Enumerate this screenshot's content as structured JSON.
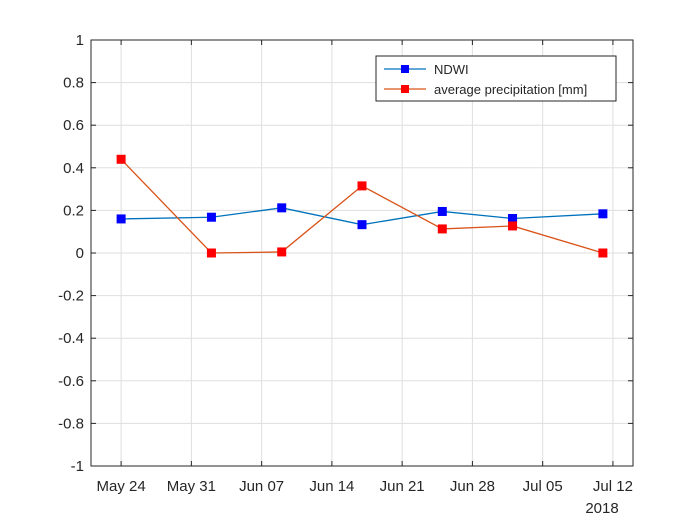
{
  "chart_data": {
    "type": "line",
    "x": [
      "2018-05-24",
      "2018-06-02",
      "2018-06-09",
      "2018-06-17",
      "2018-06-25",
      "2018-07-02",
      "2018-07-11"
    ],
    "series": [
      {
        "name": "NDWI",
        "color": "#0072BD",
        "marker_color": "#0000FF",
        "values": [
          0.16,
          0.168,
          0.212,
          0.133,
          0.195,
          0.162,
          0.184
        ]
      },
      {
        "name": "average precipitation [mm]",
        "color": "#D95319",
        "marker_color": "#FF0000",
        "values": [
          0.44,
          0.0,
          0.005,
          0.315,
          0.113,
          0.127,
          0.0
        ]
      }
    ],
    "xticks": [
      {
        "date": "2018-05-24",
        "label": "May 24"
      },
      {
        "date": "2018-05-31",
        "label": "May 31"
      },
      {
        "date": "2018-06-07",
        "label": "Jun 07"
      },
      {
        "date": "2018-06-14",
        "label": "Jun 14"
      },
      {
        "date": "2018-06-21",
        "label": "Jun 21"
      },
      {
        "date": "2018-06-28",
        "label": "Jun 28"
      },
      {
        "date": "2018-07-05",
        "label": "Jul 05"
      },
      {
        "date": "2018-07-12",
        "label": "Jul 12"
      }
    ],
    "xlim": [
      "2018-05-21",
      "2018-07-14"
    ],
    "x_secondary_label": "2018",
    "yticks": [
      -1,
      -0.8,
      -0.6,
      -0.4,
      -0.2,
      0,
      0.2,
      0.4,
      0.6,
      0.8,
      1
    ],
    "ytick_labels": [
      "-1",
      "-0.8",
      "-0.6",
      "-0.4",
      "-0.2",
      "0",
      "0.2",
      "0.4",
      "0.6",
      "0.8",
      "1"
    ],
    "ylim": [
      -1,
      1
    ],
    "grid": true,
    "legend_position": "top-right",
    "title": "",
    "xlabel": "",
    "ylabel": ""
  }
}
